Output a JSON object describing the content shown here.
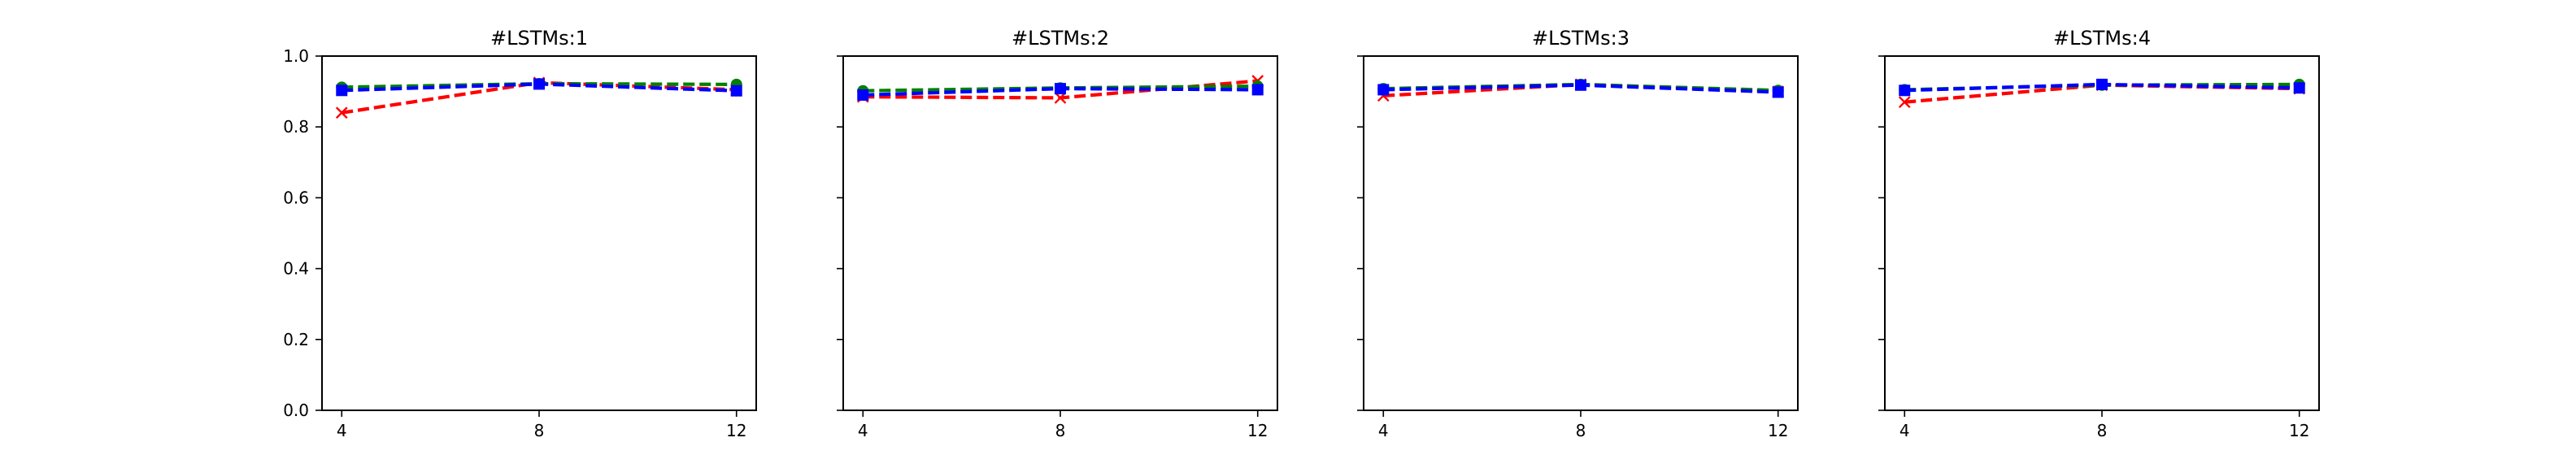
{
  "chart_data": [
    {
      "type": "line",
      "title": "#LSTMs:1",
      "x": [
        4,
        8,
        12
      ],
      "xticks": [
        "4",
        "8",
        "12"
      ],
      "ylim": [
        0.0,
        1.0
      ],
      "yticks": [
        "0.0",
        "0.2",
        "0.4",
        "0.6",
        "0.8",
        "1.0"
      ],
      "grid": false,
      "series": [
        {
          "color": "#ff0000",
          "marker": "x",
          "linestyle": "dashed",
          "values": [
            0.84,
            0.925,
            0.905
          ]
        },
        {
          "color": "#008000",
          "marker": "o",
          "linestyle": "dashed",
          "values": [
            0.912,
            0.922,
            0.92
          ]
        },
        {
          "color": "#0000ff",
          "marker": "s",
          "linestyle": "dashed",
          "values": [
            0.903,
            0.921,
            0.902
          ]
        }
      ]
    },
    {
      "type": "line",
      "title": "#LSTMs:2",
      "x": [
        4,
        8,
        12
      ],
      "xticks": [
        "4",
        "8",
        "12"
      ],
      "ylim": [
        0.0,
        1.0
      ],
      "yticks": [],
      "grid": false,
      "series": [
        {
          "color": "#ff0000",
          "marker": "x",
          "linestyle": "dashed",
          "values": [
            0.885,
            0.882,
            0.93
          ]
        },
        {
          "color": "#008000",
          "marker": "o",
          "linestyle": "dashed",
          "values": [
            0.902,
            0.91,
            0.915
          ]
        },
        {
          "color": "#0000ff",
          "marker": "s",
          "linestyle": "dashed",
          "values": [
            0.89,
            0.908,
            0.905
          ]
        }
      ]
    },
    {
      "type": "line",
      "title": "#LSTMs:3",
      "x": [
        4,
        8,
        12
      ],
      "xticks": [
        "4",
        "8",
        "12"
      ],
      "ylim": [
        0.0,
        1.0
      ],
      "yticks": [],
      "grid": false,
      "series": [
        {
          "color": "#ff0000",
          "marker": "x",
          "linestyle": "dashed",
          "values": [
            0.888,
            0.92,
            0.9
          ]
        },
        {
          "color": "#008000",
          "marker": "o",
          "linestyle": "dashed",
          "values": [
            0.908,
            0.92,
            0.903
          ]
        },
        {
          "color": "#0000ff",
          "marker": "s",
          "linestyle": "dashed",
          "values": [
            0.905,
            0.918,
            0.898
          ]
        }
      ]
    },
    {
      "type": "line",
      "title": "#LSTMs:4",
      "x": [
        4,
        8,
        12
      ],
      "xticks": [
        "4",
        "8",
        "12"
      ],
      "ylim": [
        0.0,
        1.0
      ],
      "yticks": [],
      "grid": false,
      "series": [
        {
          "color": "#ff0000",
          "marker": "x",
          "linestyle": "dashed",
          "values": [
            0.87,
            0.918,
            0.908
          ]
        },
        {
          "color": "#008000",
          "marker": "o",
          "linestyle": "dashed",
          "values": [
            0.905,
            0.918,
            0.92
          ]
        },
        {
          "color": "#0000ff",
          "marker": "s",
          "linestyle": "dashed",
          "values": [
            0.903,
            0.92,
            0.91
          ]
        }
      ]
    }
  ]
}
